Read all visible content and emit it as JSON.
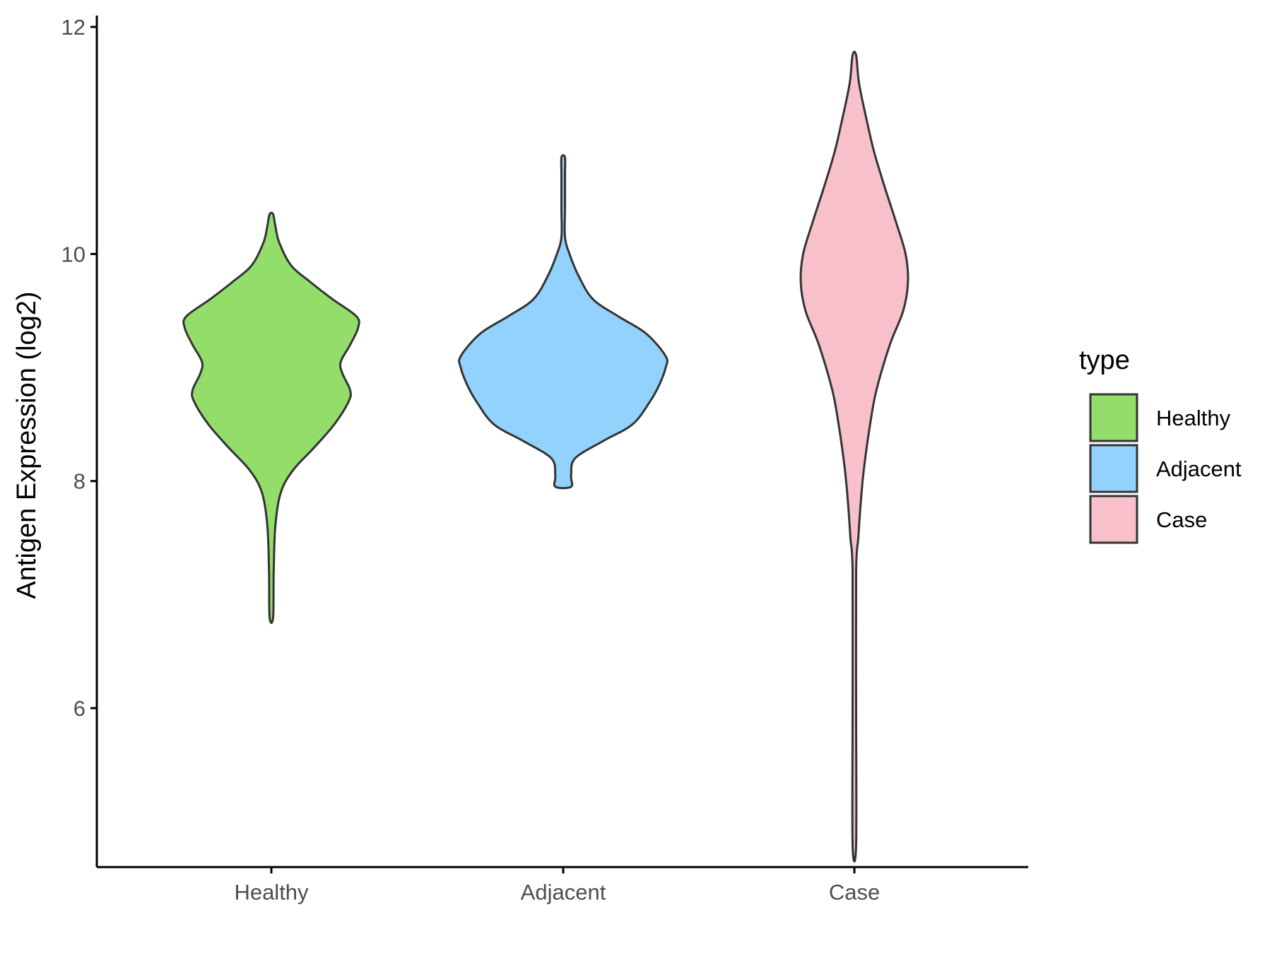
{
  "chart_data": {
    "type": "violin",
    "ylabel": "Antigen Expression (log2)",
    "xlabel": "",
    "ylim": [
      4.6,
      12.1
    ],
    "yticks": [
      6,
      8,
      10,
      12
    ],
    "categories": [
      "Healthy",
      "Adjacent",
      "Case"
    ],
    "legend": {
      "title": "type",
      "position": "right",
      "entries": [
        "Healthy",
        "Adjacent",
        "Case"
      ]
    },
    "colors": {
      "Healthy": "#93dd6a",
      "Adjacent": "#92d2fc",
      "Case": "#f7c0cb",
      "outline": "#333333"
    },
    "series": [
      {
        "name": "Healthy",
        "min": 6.8,
        "max": 10.35,
        "density": [
          [
            6.8,
            0.02
          ],
          [
            7.2,
            0.03
          ],
          [
            7.6,
            0.05
          ],
          [
            7.9,
            0.12
          ],
          [
            8.1,
            0.28
          ],
          [
            8.3,
            0.55
          ],
          [
            8.5,
            0.8
          ],
          [
            8.7,
            0.98
          ],
          [
            8.8,
            1.0
          ],
          [
            8.95,
            0.9
          ],
          [
            9.05,
            0.88
          ],
          [
            9.2,
            1.0
          ],
          [
            9.35,
            1.1
          ],
          [
            9.45,
            1.08
          ],
          [
            9.6,
            0.78
          ],
          [
            9.75,
            0.5
          ],
          [
            9.9,
            0.25
          ],
          [
            10.1,
            0.1
          ],
          [
            10.25,
            0.05
          ],
          [
            10.35,
            0.02
          ]
        ]
      },
      {
        "name": "Adjacent",
        "min": 7.95,
        "max": 10.85,
        "density": [
          [
            7.95,
            0.1
          ],
          [
            8.05,
            0.1
          ],
          [
            8.2,
            0.15
          ],
          [
            8.35,
            0.5
          ],
          [
            8.5,
            0.88
          ],
          [
            8.7,
            1.1
          ],
          [
            8.85,
            1.22
          ],
          [
            9.0,
            1.3
          ],
          [
            9.1,
            1.3
          ],
          [
            9.3,
            1.05
          ],
          [
            9.45,
            0.7
          ],
          [
            9.6,
            0.38
          ],
          [
            9.8,
            0.2
          ],
          [
            10.0,
            0.08
          ],
          [
            10.15,
            0.02
          ],
          [
            10.4,
            0.015
          ],
          [
            10.7,
            0.015
          ],
          [
            10.85,
            0.02
          ]
        ]
      },
      {
        "name": "Case",
        "min": 4.8,
        "max": 11.75,
        "density": [
          [
            4.8,
            0.01
          ],
          [
            6.0,
            0.01
          ],
          [
            7.2,
            0.02
          ],
          [
            7.5,
            0.05
          ],
          [
            7.8,
            0.08
          ],
          [
            8.1,
            0.12
          ],
          [
            8.5,
            0.2
          ],
          [
            8.8,
            0.28
          ],
          [
            9.2,
            0.45
          ],
          [
            9.5,
            0.62
          ],
          [
            9.75,
            0.68
          ],
          [
            10.0,
            0.65
          ],
          [
            10.3,
            0.52
          ],
          [
            10.6,
            0.38
          ],
          [
            10.9,
            0.25
          ],
          [
            11.2,
            0.15
          ],
          [
            11.5,
            0.06
          ],
          [
            11.75,
            0.02
          ]
        ]
      }
    ]
  }
}
